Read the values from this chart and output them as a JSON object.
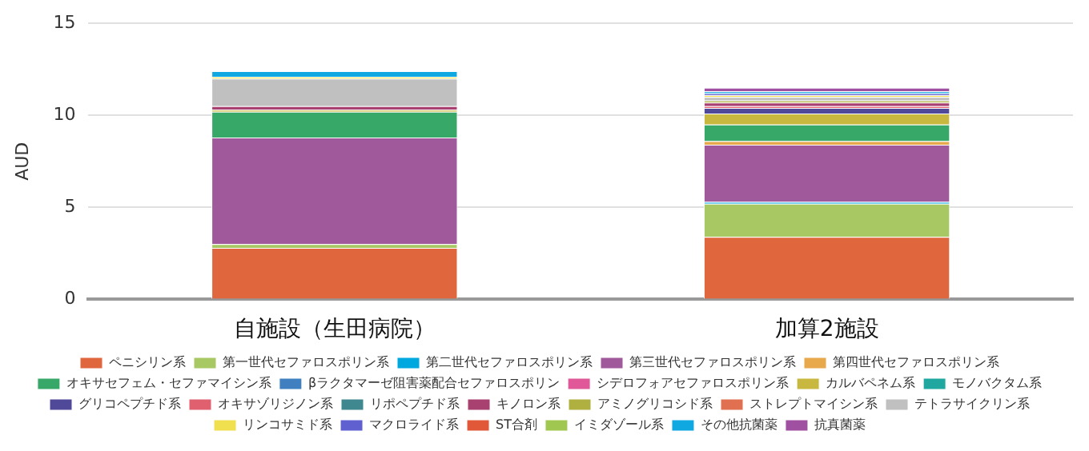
{
  "chart_data": {
    "type": "bar",
    "stacked": true,
    "ylabel": "AUD",
    "categories": [
      "自施設（生田病院）",
      "加算2施設"
    ],
    "ylim": [
      0,
      15
    ],
    "yticks": [
      0,
      5,
      10,
      15
    ],
    "grid": "y",
    "legend": "bottom",
    "series": [
      {
        "name": "ペニシリン系",
        "color": "#e0663e",
        "values": [
          2.8,
          3.4
        ]
      },
      {
        "name": "第一世代セファロスポリン系",
        "color": "#a8c864",
        "values": [
          0.2,
          1.8
        ]
      },
      {
        "name": "第二世代セファロスポリン系",
        "color": "#00a8e0",
        "values": [
          null,
          0.1
        ]
      },
      {
        "name": "第三世代セファロスポリン系",
        "color": "#a05a9b",
        "values": [
          5.8,
          3.1
        ]
      },
      {
        "name": "第四世代セファロスポリン系",
        "color": "#e8a84c",
        "values": [
          null,
          0.2
        ]
      },
      {
        "name": "オキサセフェム・セファマイシン系",
        "color": "#38a868",
        "values": [
          1.4,
          0.9
        ]
      },
      {
        "name": "βラクタマーゼ阻害薬配合セファロスポリン",
        "color": "#4080c0",
        "values": [
          null,
          null
        ]
      },
      {
        "name": "シデロフォアセファロスポリン系",
        "color": "#e05898",
        "values": [
          null,
          null
        ]
      },
      {
        "name": "カルバペネム系",
        "color": "#c8b840",
        "values": [
          0.1,
          0.6
        ]
      },
      {
        "name": "モノバクタム系",
        "color": "#20a8a0",
        "values": [
          null,
          null
        ]
      },
      {
        "name": "グリコペプチド系",
        "color": "#504898",
        "values": [
          null,
          0.3
        ]
      },
      {
        "name": "オキサゾリジノン系",
        "color": "#e06070",
        "values": [
          null,
          0.1
        ]
      },
      {
        "name": "リポペプチド系",
        "color": "#408890",
        "values": [
          null,
          null
        ]
      },
      {
        "name": "キノロン系",
        "color": "#a84070",
        "values": [
          0.2,
          0.2
        ]
      },
      {
        "name": "アミノグリコシド系",
        "color": "#b0b040",
        "values": [
          null,
          0.1
        ]
      },
      {
        "name": "ストレプトマイシン系",
        "color": "#e07050",
        "values": [
          null,
          null
        ]
      },
      {
        "name": "テトラサイクリン系",
        "color": "#c0c0c0",
        "values": [
          1.5,
          0.2
        ]
      },
      {
        "name": "リンコサミド系",
        "color": "#f0e050",
        "values": [
          0.1,
          0.1
        ]
      },
      {
        "name": "マクロライド系",
        "color": "#6060d0",
        "values": [
          null,
          0.1
        ]
      },
      {
        "name": "ST合剤",
        "color": "#e05838",
        "values": [
          null,
          null
        ]
      },
      {
        "name": "イミダゾール系",
        "color": "#a0c850",
        "values": [
          null,
          null
        ]
      },
      {
        "name": "その他抗菌薬",
        "color": "#10a8e0",
        "values": [
          0.3,
          0.1
        ]
      },
      {
        "name": "抗真菌薬",
        "color": "#a050a0",
        "values": [
          null,
          0.2
        ]
      }
    ]
  }
}
